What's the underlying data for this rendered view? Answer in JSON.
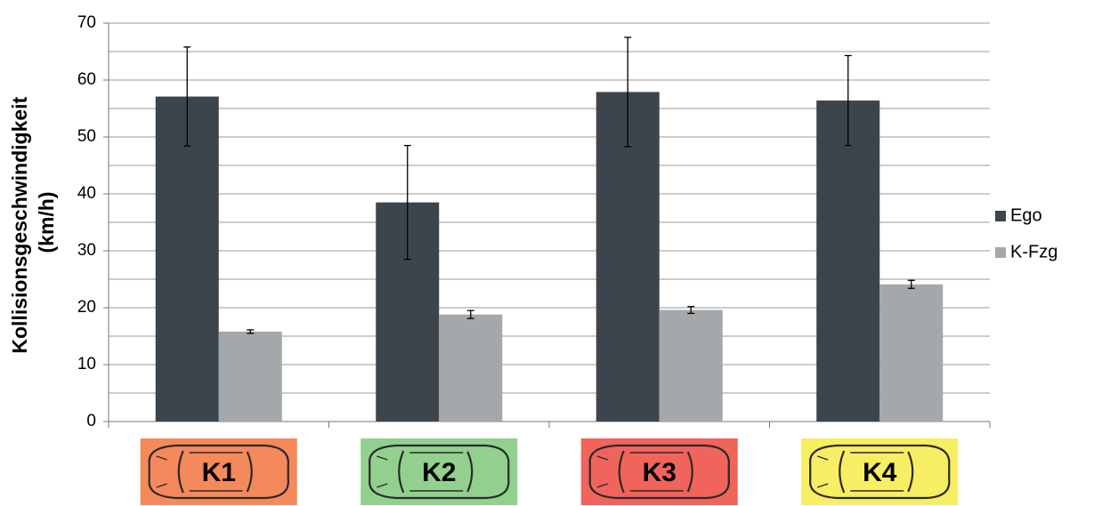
{
  "chart_data": {
    "type": "bar",
    "ylabel": [
      "Kollisionsgeschwindigkeit",
      "(km/h)"
    ],
    "categories": [
      "K1",
      "K2",
      "K3",
      "K4"
    ],
    "category_colors": [
      "#f4895c",
      "#92d08e",
      "#f0645c",
      "#f7ee64"
    ],
    "series": [
      {
        "name": "Ego",
        "color": "#3d454c",
        "values": [
          57.1,
          38.5,
          57.9,
          56.4
        ],
        "errors": [
          8.7,
          10.0,
          9.6,
          7.9
        ]
      },
      {
        "name": "K-Fzg",
        "color": "#a5a8aa",
        "values": [
          15.8,
          18.8,
          19.6,
          24.1
        ],
        "errors": [
          0.3,
          0.7,
          0.6,
          0.7
        ]
      }
    ],
    "ylim": [
      0,
      70
    ],
    "yticks": [
      0,
      10,
      20,
      30,
      40,
      50,
      60,
      70
    ],
    "minor_yticks": [
      5,
      15,
      25,
      35,
      45,
      55,
      65
    ],
    "grid": true,
    "legend": "right"
  }
}
